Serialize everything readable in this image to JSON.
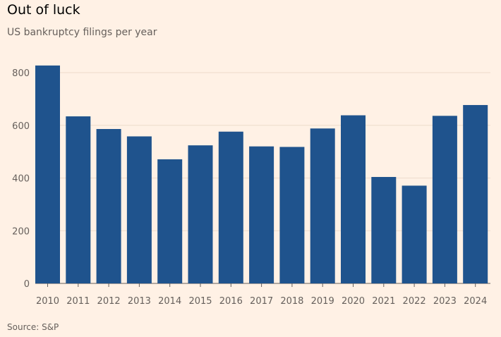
{
  "chart_data": {
    "type": "bar",
    "title": "Out of luck",
    "subtitle": "US bankruptcy filings per year",
    "source": "Source: S&P",
    "categories": [
      "2010",
      "2011",
      "2012",
      "2013",
      "2014",
      "2015",
      "2016",
      "2017",
      "2018",
      "2019",
      "2020",
      "2021",
      "2022",
      "2023",
      "2024"
    ],
    "values": [
      827,
      634,
      586,
      558,
      471,
      524,
      576,
      520,
      518,
      588,
      638,
      404,
      371,
      636,
      677
    ],
    "ylim": [
      0,
      800
    ],
    "yticks": [
      0,
      200,
      400,
      600,
      800
    ],
    "xlabel": "",
    "ylabel": "",
    "grid": true,
    "bar_color": "#1f538d"
  }
}
